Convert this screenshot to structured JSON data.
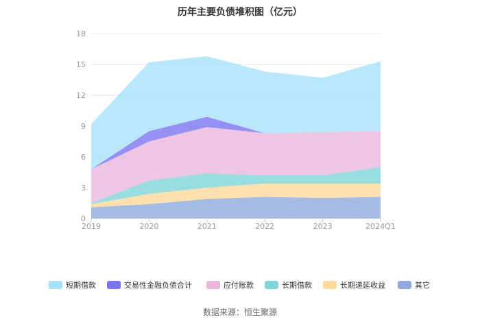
{
  "chart_data": {
    "type": "area",
    "stacked": true,
    "title": "历年主要负债堆积图（亿元）",
    "xlabel": "",
    "ylabel": "",
    "categories": [
      "2019",
      "2020",
      "2021",
      "2022",
      "2023",
      "2024Q1"
    ],
    "ylim": [
      0,
      18
    ],
    "yticks": [
      0,
      3,
      6,
      9,
      12,
      15,
      18
    ],
    "grid": true,
    "legend_position": "bottom",
    "series": [
      {
        "name": "其它",
        "color": "#8faadc",
        "values": [
          1.1,
          1.4,
          1.9,
          2.1,
          2.0,
          2.1
        ]
      },
      {
        "name": "长期递延收益",
        "color": "#fcd89a",
        "values": [
          0.3,
          1.0,
          1.1,
          1.3,
          1.4,
          1.3
        ]
      },
      {
        "name": "长期借款",
        "color": "#7fd6d6",
        "values": [
          0.1,
          1.3,
          1.4,
          0.8,
          0.8,
          1.6
        ]
      },
      {
        "name": "应付账款",
        "color": "#eab7dd",
        "values": [
          3.3,
          3.8,
          4.5,
          4.1,
          4.2,
          3.5
        ]
      },
      {
        "name": "交易性金融负债合计",
        "color": "#7b74f0",
        "values": [
          0.0,
          1.0,
          1.0,
          0.0,
          0.0,
          0.0
        ]
      },
      {
        "name": "短期借款",
        "color": "#a7e1fa",
        "values": [
          4.4,
          6.7,
          5.9,
          6.0,
          5.3,
          6.8
        ]
      }
    ],
    "source": "数据来源：恒生聚源"
  }
}
